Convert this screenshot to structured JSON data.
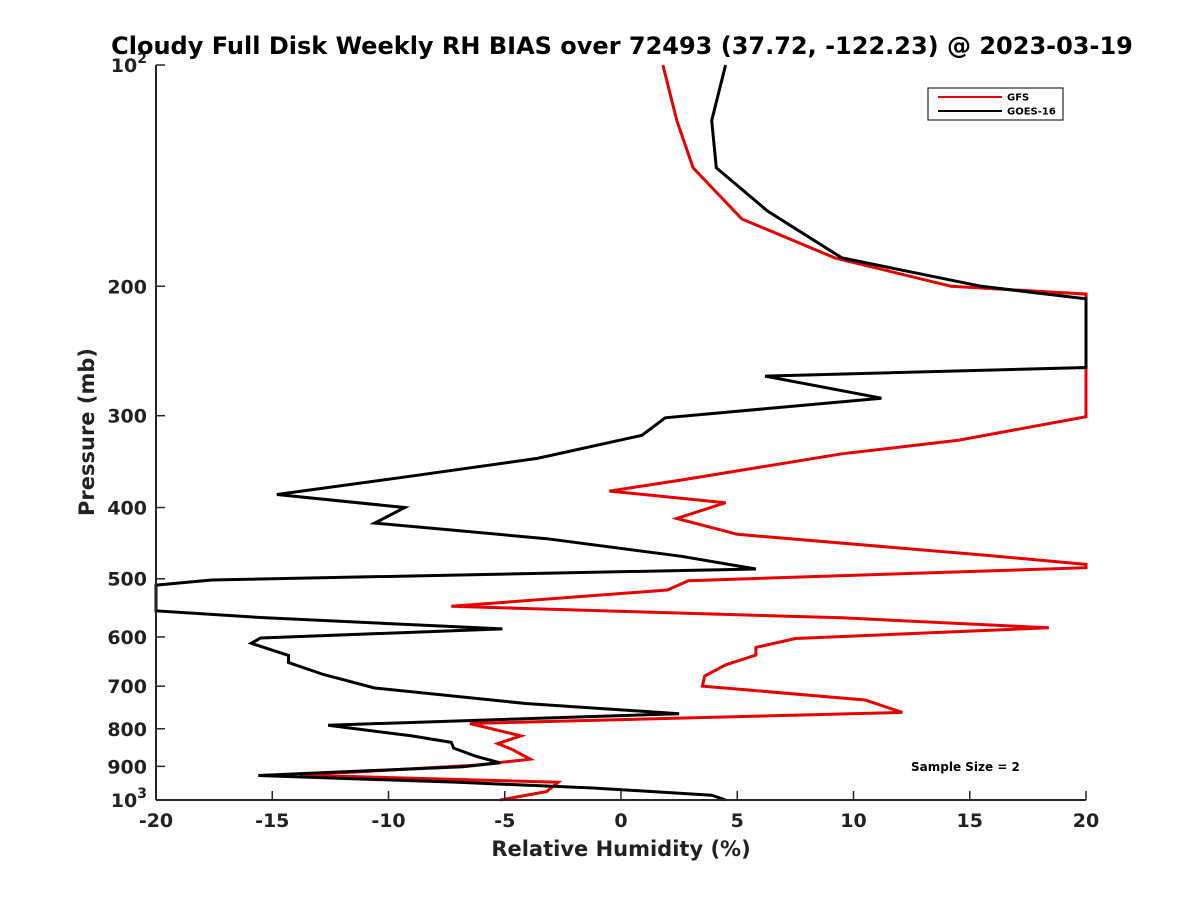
{
  "chart_data": {
    "type": "line",
    "title": "Cloudy Full Disk Weekly RH BIAS over 72493 (37.72, -122.23) @ 2023-03-19",
    "xlabel": "Relative Humidity (%)",
    "ylabel": "Pressure (mb)",
    "xlim": [
      -20,
      20
    ],
    "ylim": [
      100,
      1000
    ],
    "y_scale": "log",
    "y_reversed": true,
    "x_ticks": [
      -20,
      -15,
      -10,
      -5,
      0,
      5,
      10,
      15,
      20
    ],
    "y_ticks": [
      {
        "value": 100,
        "base": "10",
        "exp": "2"
      },
      {
        "value": 200,
        "text": "200"
      },
      {
        "value": 300,
        "text": "300"
      },
      {
        "value": 400,
        "text": "400"
      },
      {
        "value": 500,
        "text": "500"
      },
      {
        "value": 600,
        "text": "600"
      },
      {
        "value": 700,
        "text": "700"
      },
      {
        "value": 800,
        "text": "800"
      },
      {
        "value": 900,
        "text": "900"
      },
      {
        "value": 1000,
        "base": "10",
        "exp": "3"
      }
    ],
    "grid": false,
    "legend_position": "top-right",
    "annotation": "Sample Size = 2",
    "series": [
      {
        "name": "GFS",
        "color": "#e60000",
        "points": [
          [
            1.8,
            100
          ],
          [
            2.4,
            119
          ],
          [
            3.1,
            138
          ],
          [
            5.2,
            162
          ],
          [
            9.2,
            183
          ],
          [
            14.2,
            200
          ],
          [
            20.0,
            205
          ],
          [
            20.0,
            301
          ],
          [
            14.5,
            324
          ],
          [
            9.5,
            338
          ],
          [
            2.6,
            367
          ],
          [
            -0.5,
            380
          ],
          [
            4.5,
            394
          ],
          [
            2.4,
            414
          ],
          [
            5.0,
            435
          ],
          [
            15.5,
            464
          ],
          [
            20.0,
            478
          ],
          [
            20.0,
            483
          ],
          [
            2.9,
            503
          ],
          [
            2.0,
            518
          ],
          [
            -7.3,
            545
          ],
          [
            9.5,
            565
          ],
          [
            18.4,
            583
          ],
          [
            7.5,
            603
          ],
          [
            5.8,
            620
          ],
          [
            5.8,
            635
          ],
          [
            4.5,
            655
          ],
          [
            3.6,
            678
          ],
          [
            3.5,
            700
          ],
          [
            10.5,
            731
          ],
          [
            12.1,
            760
          ],
          [
            -6.5,
            787
          ],
          [
            -4.3,
            818
          ],
          [
            -5.3,
            838
          ],
          [
            -4.7,
            853
          ],
          [
            -3.9,
            880
          ],
          [
            -6.3,
            897
          ],
          [
            -13.8,
            925
          ],
          [
            -2.7,
            946
          ],
          [
            -3.2,
            974
          ],
          [
            -5.2,
            1000
          ]
        ]
      },
      {
        "name": "GOES-16",
        "color": "#000000",
        "points": [
          [
            4.5,
            100
          ],
          [
            3.9,
            119
          ],
          [
            4.1,
            138
          ],
          [
            6.3,
            158
          ],
          [
            9.5,
            183
          ],
          [
            15.5,
            200
          ],
          [
            20.0,
            208
          ],
          [
            20.0,
            258
          ],
          [
            6.2,
            265
          ],
          [
            11.2,
            284
          ],
          [
            1.9,
            302
          ],
          [
            0.9,
            319
          ],
          [
            -3.6,
            343
          ],
          [
            -9.7,
            365
          ],
          [
            -14.8,
            384
          ],
          [
            -9.3,
            400
          ],
          [
            -10.6,
            420
          ],
          [
            -3.2,
            441
          ],
          [
            2.6,
            466
          ],
          [
            5.8,
            485
          ],
          [
            -17.6,
            502
          ],
          [
            -20.0,
            510
          ],
          [
            -20.0,
            553
          ],
          [
            -15.3,
            565
          ],
          [
            -5.1,
            585
          ],
          [
            -15.5,
            602
          ],
          [
            -15.9,
            612
          ],
          [
            -14.3,
            636
          ],
          [
            -14.3,
            650
          ],
          [
            -12.8,
            675
          ],
          [
            -10.6,
            704
          ],
          [
            -4.1,
            739
          ],
          [
            2.5,
            763
          ],
          [
            -12.6,
            791
          ],
          [
            -9.0,
            818
          ],
          [
            -7.3,
            835
          ],
          [
            -7.2,
            850
          ],
          [
            -6.2,
            873
          ],
          [
            -5.2,
            890
          ],
          [
            -6.8,
            901
          ],
          [
            -15.6,
            926
          ],
          [
            -7.0,
            946
          ],
          [
            -1.2,
            963
          ],
          [
            3.9,
            985
          ],
          [
            4.5,
            1000
          ]
        ]
      }
    ]
  }
}
